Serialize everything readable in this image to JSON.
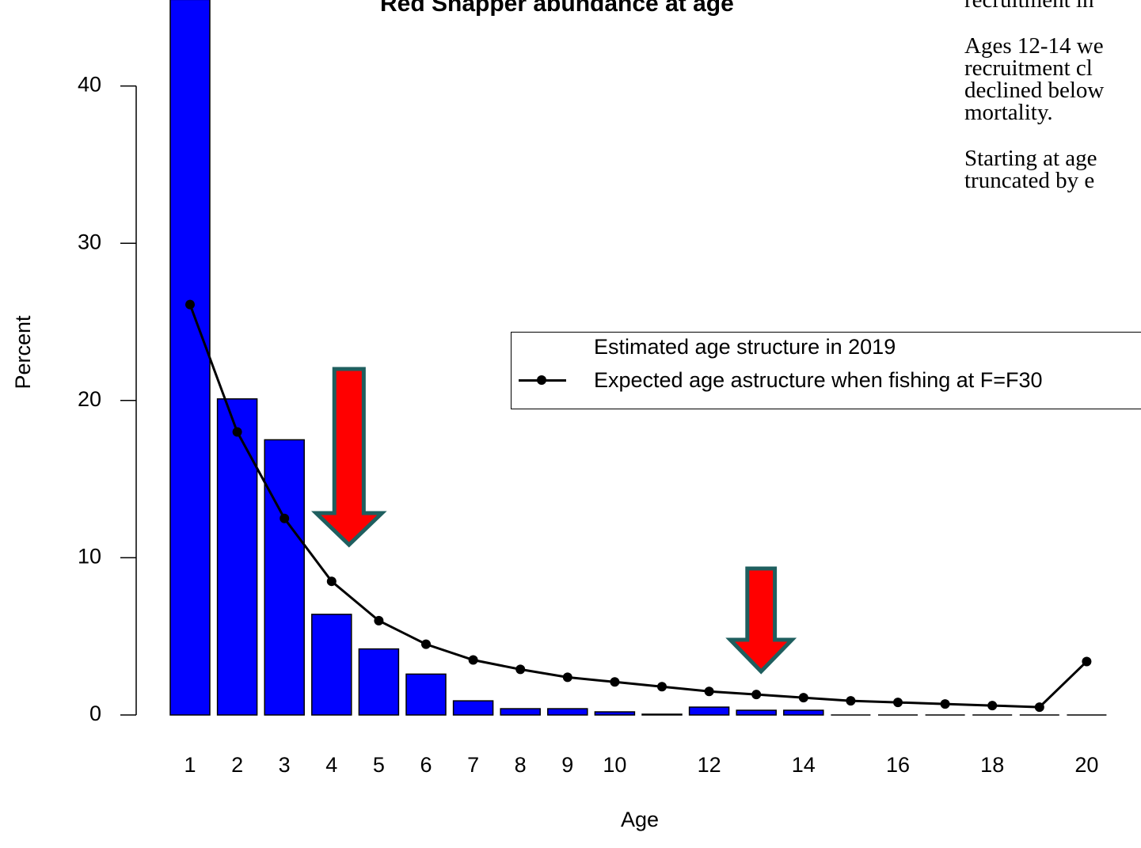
{
  "side_text": [
    "recruitment in",
    "Ages 12-14 we recruitment cl declined below mortality.",
    "Starting at age truncated by e"
  ],
  "chart_data": {
    "type": "bar",
    "title": "Red Snapper abundance at age",
    "xlabel": "Age",
    "ylabel": "Percent",
    "categories": [
      1,
      2,
      3,
      4,
      5,
      6,
      7,
      8,
      9,
      10,
      11,
      12,
      13,
      14,
      15,
      16,
      17,
      18,
      19,
      20
    ],
    "x_tick_labels": [
      "1",
      "2",
      "3",
      "4",
      "5",
      "6",
      "7",
      "8",
      "9",
      "10",
      "12",
      "14",
      "16",
      "18",
      "20"
    ],
    "y_tick_labels": [
      "0",
      "10",
      "20",
      "30",
      "40"
    ],
    "ylim": [
      0,
      45.5
    ],
    "grid": false,
    "legend_position": "right",
    "series": [
      {
        "name": "Estimated age structure in 2019",
        "type": "bar",
        "color": "#0000ff",
        "values": [
          45.5,
          20.1,
          17.5,
          6.4,
          4.2,
          2.6,
          0.9,
          0.4,
          0.4,
          0.2,
          0.05,
          0.5,
          0.3,
          0.3,
          0.0,
          0.0,
          0.0,
          0.0,
          0.0,
          0.0
        ]
      },
      {
        "name": "Expected age astructure when fishing at F=F30",
        "type": "line",
        "color": "#000000",
        "values": [
          26.1,
          18.0,
          12.5,
          8.5,
          6.0,
          4.5,
          3.5,
          2.9,
          2.4,
          2.1,
          1.8,
          1.5,
          1.3,
          1.1,
          0.9,
          0.8,
          0.7,
          0.6,
          0.5,
          3.4
        ]
      }
    ],
    "annotations": [
      {
        "type": "arrow",
        "color": "#ff0000",
        "points_to_age": 4
      },
      {
        "type": "arrow",
        "color": "#ff0000",
        "points_to_age": 13
      }
    ]
  }
}
